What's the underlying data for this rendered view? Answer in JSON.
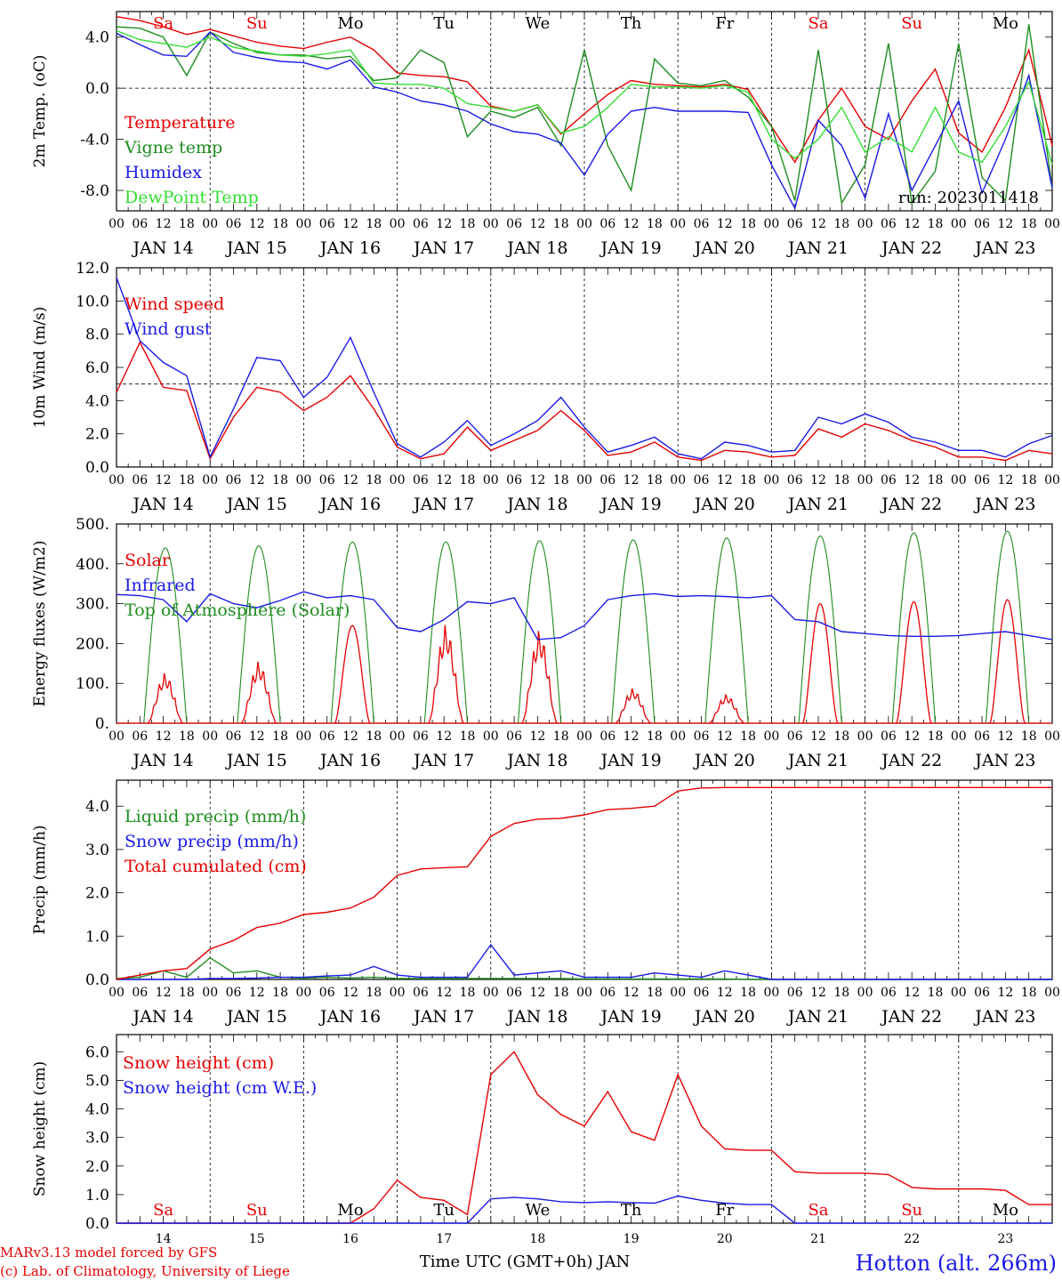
{
  "colors": {
    "red": "#e60000",
    "green": "#1e8c1e",
    "blue": "#1a1ae6",
    "lime": "#33dd33",
    "black": "#000000"
  },
  "axis": {
    "hour_labels": [
      "00",
      "06",
      "12",
      "18"
    ],
    "end_label": "00",
    "date_labels": [
      "JAN 14",
      "JAN 15",
      "JAN 16",
      "JAN 17",
      "JAN 18",
      "JAN 19",
      "JAN 20",
      "JAN 21",
      "JAN 22",
      "JAN 23"
    ],
    "days": [
      "Sa",
      "Su",
      "Mo",
      "Tu",
      "We",
      "Th",
      "Fr",
      "Sa",
      "Su",
      "Mo"
    ],
    "day_colors": [
      "red",
      "red",
      "black",
      "black",
      "black",
      "black",
      "black",
      "red",
      "red",
      "black"
    ],
    "day_numbers": [
      "14",
      "15",
      "16",
      "17",
      "18",
      "19",
      "20",
      "21",
      "22",
      "23"
    ],
    "xlabel": "Time UTC (GMT+0h) JAN"
  },
  "footer": {
    "credit_1": "MARv3.13 model forced by GFS",
    "credit_2": "(c) Lab. of Climatology, University of Liege",
    "station": "Hotton (alt. 266m)"
  },
  "chart_data": [
    {
      "type": "line",
      "ylabel": "2m Temp. (oC)",
      "ylim": [
        -9.6,
        6.0
      ],
      "yticks": [
        4.0,
        0.0,
        -4.0,
        -8.0
      ],
      "ytick_labels": [
        "4.0",
        "0.0",
        "-4.0",
        "-8.0"
      ],
      "ref_line": 0.0,
      "run_label": "run: 2023011418",
      "x_hours": [
        0,
        6,
        12,
        18,
        24,
        30,
        36,
        42,
        48,
        54,
        60,
        66,
        72,
        78,
        84,
        90,
        96,
        102,
        108,
        114,
        120,
        126,
        132,
        138,
        144,
        150,
        156,
        162,
        168,
        174,
        180,
        186,
        192,
        198,
        204,
        210,
        216,
        222,
        228,
        234,
        240
      ],
      "series": [
        {
          "name": "Temperature",
          "color": "red",
          "values": [
            5.6,
            5.3,
            4.8,
            4.2,
            4.6,
            4.1,
            3.6,
            3.3,
            3.1,
            3.6,
            4.0,
            3.0,
            1.2,
            1.0,
            0.9,
            0.5,
            -1.4,
            -1.8,
            -1.3,
            -3.6,
            -2.0,
            -0.5,
            0.6,
            0.3,
            0.2,
            0.1,
            0.3,
            -0.1,
            -3.0,
            -5.8,
            -2.5,
            0.0,
            -3.0,
            -4.0,
            -1.0,
            1.5,
            -3.5,
            -5.0,
            -1.5,
            3.0,
            -4.5
          ]
        },
        {
          "name": "Vigne temp",
          "color": "green",
          "values": [
            4.8,
            4.7,
            4.0,
            1.0,
            4.4,
            3.5,
            2.8,
            2.6,
            2.6,
            2.3,
            2.5,
            0.6,
            0.8,
            3.0,
            2.0,
            -3.8,
            -1.8,
            -2.3,
            -1.5,
            -4.5,
            3.0,
            -4.5,
            -8.0,
            2.3,
            0.4,
            0.2,
            0.6,
            -0.7,
            -3.0,
            -8.8,
            3.0,
            -9.0,
            -6.0,
            3.5,
            -9.0,
            -6.5,
            3.5,
            -7.0,
            -8.8,
            5.0,
            -7.8
          ]
        },
        {
          "name": "Humidex",
          "color": "blue",
          "values": [
            4.3,
            3.4,
            2.6,
            2.5,
            4.4,
            2.8,
            2.4,
            2.1,
            2.0,
            1.5,
            2.2,
            0.1,
            -0.3,
            -1.0,
            -1.3,
            -1.8,
            -2.8,
            -3.4,
            -3.6,
            -4.3,
            -6.8,
            -3.6,
            -1.8,
            -1.5,
            -1.8,
            -1.8,
            -1.8,
            -1.9,
            -6.0,
            -9.4,
            -2.5,
            -4.5,
            -8.6,
            -2.0,
            -8.0,
            -4.5,
            -1.0,
            -8.2,
            -4.0,
            1.0,
            -7.8
          ]
        },
        {
          "name": "DewPoint Temp",
          "color": "lime",
          "values": [
            4.5,
            3.8,
            3.5,
            3.2,
            4.0,
            3.2,
            2.9,
            2.6,
            2.5,
            2.7,
            3.0,
            0.4,
            0.3,
            0.3,
            0.0,
            -1.2,
            -1.5,
            -1.8,
            -1.3,
            -3.5,
            -3.0,
            -1.5,
            0.3,
            0.1,
            0.1,
            0.0,
            0.2,
            -0.3,
            -4.0,
            -5.5,
            -4.0,
            -1.5,
            -5.0,
            -3.8,
            -5.0,
            -1.5,
            -5.0,
            -5.8,
            -3.0,
            0.5,
            -6.0
          ]
        }
      ]
    },
    {
      "type": "line",
      "ylabel": "10m Wind (m/s)",
      "ylim": [
        0.0,
        12.0
      ],
      "yticks": [
        0,
        2,
        4,
        6,
        8,
        10,
        12
      ],
      "ytick_labels": [
        "0.0",
        "2.0",
        "4.0",
        "6.0",
        "8.0",
        "10.0",
        "12.0"
      ],
      "ref_line": 5.0,
      "x_hours": [
        0,
        6,
        12,
        18,
        24,
        30,
        36,
        42,
        48,
        54,
        60,
        66,
        72,
        78,
        84,
        90,
        96,
        102,
        108,
        114,
        120,
        126,
        132,
        138,
        144,
        150,
        156,
        162,
        168,
        174,
        180,
        186,
        192,
        198,
        204,
        210,
        216,
        222,
        228,
        234,
        240
      ],
      "series": [
        {
          "name": "Wind speed",
          "color": "red",
          "values": [
            4.5,
            7.5,
            4.8,
            4.6,
            0.5,
            3.0,
            4.8,
            4.5,
            3.4,
            4.2,
            5.5,
            3.5,
            1.2,
            0.5,
            0.8,
            2.4,
            1.0,
            1.6,
            2.2,
            3.4,
            2.2,
            0.7,
            0.9,
            1.5,
            0.6,
            0.4,
            1.0,
            0.9,
            0.6,
            0.7,
            2.3,
            1.8,
            2.6,
            2.2,
            1.6,
            1.2,
            0.6,
            0.6,
            0.4,
            1.0,
            0.8
          ]
        },
        {
          "name": "Wind gust",
          "color": "blue",
          "values": [
            11.4,
            7.6,
            6.3,
            5.5,
            0.6,
            3.5,
            6.6,
            6.4,
            4.2,
            5.4,
            7.8,
            4.5,
            1.4,
            0.6,
            1.5,
            2.8,
            1.3,
            2.0,
            2.8,
            4.2,
            2.4,
            0.9,
            1.3,
            1.8,
            0.8,
            0.5,
            1.5,
            1.3,
            0.9,
            1.0,
            3.0,
            2.6,
            3.2,
            2.7,
            1.8,
            1.5,
            1.0,
            1.0,
            0.6,
            1.4,
            1.9
          ]
        }
      ]
    },
    {
      "type": "line",
      "ylabel": "Energy fluxes (W/m2)",
      "ylim": [
        0,
        500
      ],
      "yticks": [
        0,
        100,
        200,
        300,
        400,
        500
      ],
      "ytick_labels": [
        "0.",
        "100.",
        "200.",
        "300.",
        "400.",
        "500."
      ],
      "solar_peaks": [
        130,
        160,
        245,
        255,
        240,
        90,
        75,
        300,
        305,
        310
      ],
      "toa_peaks": [
        440,
        445,
        455,
        455,
        458,
        460,
        465,
        470,
        478,
        482
      ],
      "infrared_x_hours": [
        0,
        6,
        12,
        18,
        24,
        30,
        36,
        42,
        48,
        54,
        60,
        66,
        72,
        78,
        84,
        90,
        96,
        102,
        108,
        114,
        120,
        126,
        132,
        138,
        144,
        150,
        156,
        162,
        168,
        174,
        180,
        186,
        192,
        198,
        204,
        210,
        216,
        222,
        228,
        234,
        240
      ],
      "infrared_values": [
        323,
        320,
        310,
        255,
        325,
        300,
        290,
        308,
        330,
        315,
        320,
        310,
        240,
        230,
        260,
        305,
        300,
        315,
        210,
        215,
        245,
        310,
        320,
        325,
        318,
        320,
        318,
        315,
        320,
        260,
        255,
        230,
        225,
        220,
        218,
        218,
        220,
        225,
        230,
        220,
        210
      ],
      "series": [
        {
          "name": "Solar",
          "color": "red"
        },
        {
          "name": "Infrared",
          "color": "blue"
        },
        {
          "name": "Top of Atmosphere (Solar)",
          "color": "green"
        }
      ]
    },
    {
      "type": "line",
      "ylabel": "Precip (mm/h)",
      "ylim": [
        0.0,
        4.6
      ],
      "yticks": [
        0,
        1,
        2,
        3,
        4
      ],
      "ytick_labels": [
        "0.0",
        "1.0",
        "2.0",
        "3.0",
        "4.0"
      ],
      "x_hours": [
        0,
        6,
        12,
        18,
        24,
        30,
        36,
        42,
        48,
        54,
        60,
        66,
        72,
        78,
        84,
        90,
        96,
        102,
        108,
        114,
        120,
        126,
        132,
        138,
        144,
        150,
        156,
        162,
        168,
        174,
        180,
        186,
        192,
        198,
        204,
        210,
        216,
        222,
        228,
        234,
        240
      ],
      "series": [
        {
          "name": "Liquid precip (mm/h)",
          "color": "green",
          "values": [
            0.02,
            0.05,
            0.2,
            0.05,
            0.5,
            0.15,
            0.2,
            0.05,
            0.03,
            0.05,
            0.03,
            0.05,
            0.02,
            0.02,
            0.02,
            0.02,
            0.02,
            0.02,
            0.02,
            0.02,
            0.01,
            0.01,
            0.01,
            0.01,
            0.01,
            0.01,
            0.01,
            0.0,
            0.0,
            0.0,
            0.0,
            0.0,
            0.0,
            0.0,
            0.0,
            0.0,
            0.0,
            0.0,
            0.0,
            0.0,
            0.0
          ]
        },
        {
          "name": "Snow precip (mm/h)",
          "color": "blue",
          "values": [
            0.0,
            0.0,
            0.0,
            0.0,
            0.02,
            0.02,
            0.03,
            0.05,
            0.05,
            0.08,
            0.1,
            0.3,
            0.1,
            0.05,
            0.05,
            0.05,
            0.8,
            0.1,
            0.15,
            0.2,
            0.05,
            0.05,
            0.05,
            0.15,
            0.1,
            0.05,
            0.2,
            0.1,
            0.0,
            0.0,
            0.0,
            0.0,
            0.0,
            0.0,
            0.0,
            0.0,
            0.0,
            0.0,
            0.0,
            0.0,
            0.0
          ]
        },
        {
          "name": "Total cumulated (cm)",
          "color": "red",
          "values": [
            0.0,
            0.1,
            0.2,
            0.25,
            0.7,
            0.9,
            1.2,
            1.3,
            1.5,
            1.55,
            1.65,
            1.9,
            2.4,
            2.55,
            2.58,
            2.6,
            3.3,
            3.6,
            3.7,
            3.72,
            3.8,
            3.92,
            3.95,
            4.0,
            4.35,
            4.42,
            4.43,
            4.43,
            4.43,
            4.43,
            4.43,
            4.43,
            4.43,
            4.43,
            4.43,
            4.43,
            4.43,
            4.43,
            4.43,
            4.43,
            4.43
          ]
        }
      ]
    },
    {
      "type": "line",
      "ylabel": "Snow height (cm)",
      "ylim": [
        0.0,
        6.6
      ],
      "yticks": [
        0,
        1,
        2,
        3,
        4,
        5,
        6
      ],
      "ytick_labels": [
        "0.0",
        "1.0",
        "2.0",
        "3.0",
        "4.0",
        "5.0",
        "6.0"
      ],
      "x_hours": [
        0,
        6,
        12,
        18,
        24,
        30,
        36,
        42,
        48,
        54,
        60,
        66,
        72,
        78,
        84,
        90,
        96,
        102,
        108,
        114,
        120,
        126,
        132,
        138,
        144,
        150,
        156,
        162,
        168,
        174,
        180,
        186,
        192,
        198,
        204,
        210,
        216,
        222,
        228,
        234,
        240
      ],
      "series": [
        {
          "name": "Snow height (cm)",
          "color": "red",
          "values": [
            0,
            0,
            0,
            0,
            0,
            0,
            0,
            0,
            0,
            0,
            0,
            0.5,
            1.5,
            0.9,
            0.8,
            0.3,
            5.2,
            6.0,
            4.5,
            3.8,
            3.4,
            4.6,
            3.2,
            2.9,
            5.2,
            3.4,
            2.6,
            2.55,
            2.55,
            1.8,
            1.75,
            1.75,
            1.75,
            1.7,
            1.25,
            1.2,
            1.2,
            1.2,
            1.15,
            0.65,
            0.65
          ]
        },
        {
          "name": "Snow height (cm W.E.)",
          "color": "blue",
          "values": [
            0,
            0,
            0,
            0,
            0,
            0,
            0,
            0,
            0,
            0,
            0,
            0,
            0,
            0,
            0,
            0,
            0.85,
            0.9,
            0.85,
            0.75,
            0.72,
            0.75,
            0.72,
            0.7,
            0.95,
            0.8,
            0.7,
            0.65,
            0.65,
            0.0,
            0.0,
            0.0,
            0.0,
            0.0,
            0.0,
            0.0,
            0.0,
            0.0,
            0.0,
            0.0,
            0.0
          ]
        }
      ]
    }
  ]
}
